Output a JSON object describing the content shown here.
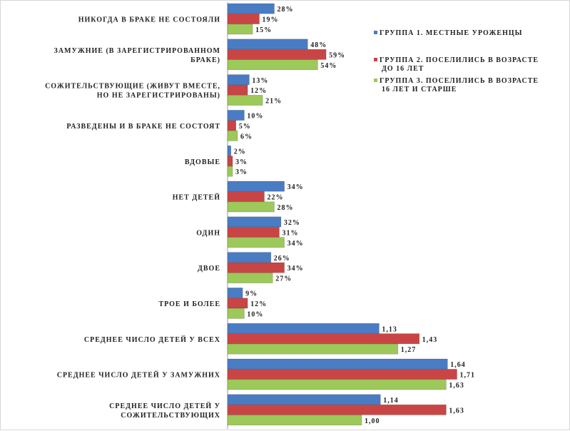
{
  "chart_data": {
    "type": "bar",
    "orientation": "horizontal",
    "grid": false,
    "legend_position": "top-right",
    "categories": [
      [
        "НИКОГДА В БРАКЕ НЕ СОСТОЯЛИ"
      ],
      [
        "ЗАМУЖНИЕ (В ЗАРЕГИСТРИРОВАННОМ",
        "БРАКЕ)"
      ],
      [
        "СОЖИТЕЛЬСТВУЮЩИЕ (ЖИВУТ ВМЕСТЕ,",
        "НО НЕ ЗАРЕГИСТРИРОВАНЫ)"
      ],
      [
        "РАЗВЕДЕНЫ И В БРАКЕ НЕ СОСТОЯТ"
      ],
      [
        "ВДОВЫЕ"
      ],
      [
        "НЕТ ДЕТЕЙ"
      ],
      [
        "ОДИН"
      ],
      [
        "ДВОЕ"
      ],
      [
        "ТРОЕ И БОЛЕЕ"
      ],
      [
        "СРЕДНЕЕ ЧИСЛО ДЕТЕЙ У ВСЕХ"
      ],
      [
        "СРЕДНЕЕ ЧИСЛО ДЕТЕЙ У ЗАМУЖНИХ"
      ],
      [
        "СРЕДНЕЕ ЧИСЛО ДЕТЕЙ У",
        "СОЖИТЕЛЬСТВУЮЩИХ"
      ]
    ],
    "series": [
      {
        "name": [
          "ГРУППА 1. МЕСТНЫЕ УРОЖЕНЦЫ"
        ],
        "color": "#4a7cc4",
        "values": [
          28,
          48,
          13,
          10,
          2,
          34,
          32,
          26,
          9,
          1.13,
          1.64,
          1.14
        ],
        "labels": [
          "28%",
          "48%",
          "13%",
          "10%",
          "2%",
          "34%",
          "32%",
          "26%",
          "9%",
          "1,13",
          "1,64",
          "1,14"
        ]
      },
      {
        "name": [
          "ГРУППА 2. ПОСЕЛИЛИСЬ В ВОЗРАСТЕ",
          "ДО 16 ЛЕТ"
        ],
        "color": "#c94545",
        "values": [
          19,
          59,
          12,
          5,
          3,
          22,
          31,
          34,
          12,
          1.43,
          1.71,
          1.63
        ],
        "labels": [
          "19%",
          "59%",
          "12%",
          "5%",
          "3%",
          "22%",
          "31%",
          "34%",
          "12%",
          "1,43",
          "1,71",
          "1,63"
        ]
      },
      {
        "name": [
          "ГРУППА 3. ПОСЕЛИЛИСЬ В ВОЗРАСТЕ",
          "16 ЛЕТ И СТАРШЕ"
        ],
        "color": "#9cc95a",
        "values": [
          15,
          54,
          21,
          6,
          3,
          28,
          34,
          27,
          10,
          1.27,
          1.63,
          1.0
        ],
        "labels": [
          "15%",
          "54%",
          "21%",
          "6%",
          "3%",
          "28%",
          "34%",
          "27%",
          "10%",
          "1,27",
          "1,63",
          "1,00"
        ]
      }
    ],
    "xlim": [
      0,
      100
    ]
  }
}
